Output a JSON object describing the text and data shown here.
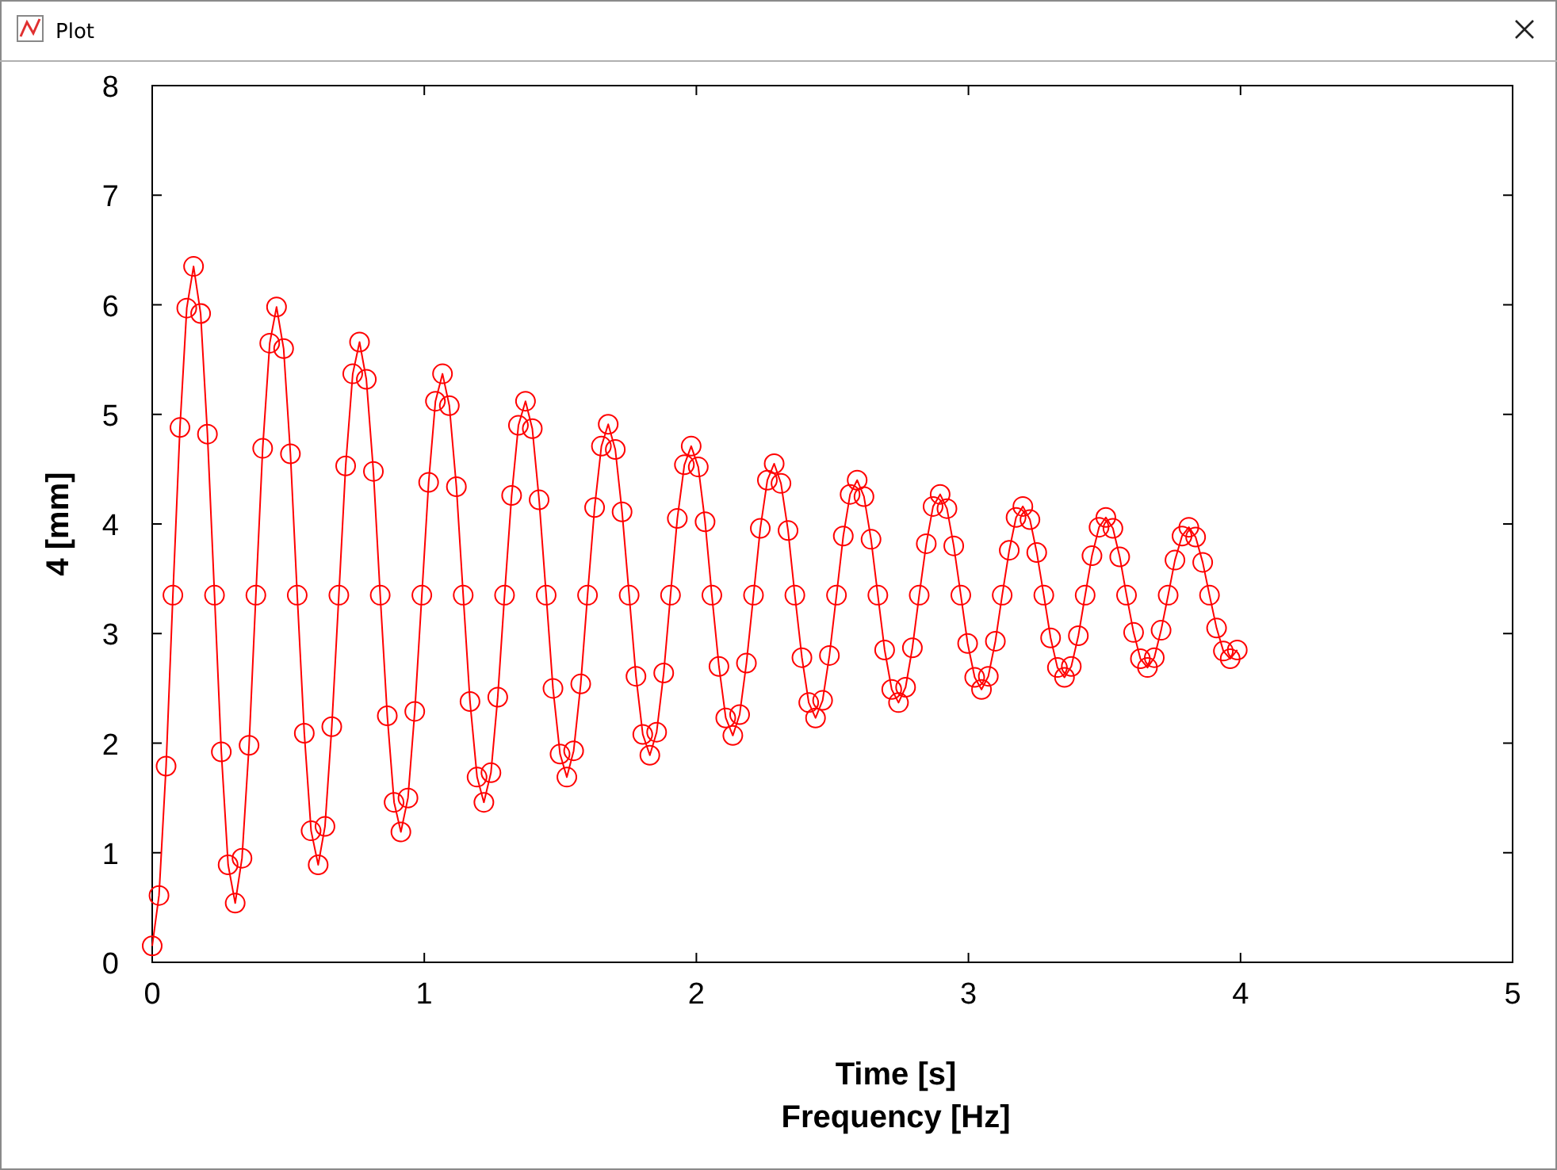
{
  "chart_data": {
    "type": "line",
    "title": "Plot",
    "xlabel": "Time [s]\nFrequency [Hz]",
    "ylabel": "4 [mm]",
    "xlim": [
      0,
      5
    ],
    "xticks": [
      0,
      1,
      2,
      3,
      4,
      5
    ],
    "ylim": [
      0,
      8
    ],
    "yticks": [
      0,
      1,
      2,
      3,
      4,
      5,
      6,
      7,
      8
    ],
    "grid": false,
    "marker": "circle",
    "line_style": "solid",
    "series": [
      {
        "color": "#ff0000",
        "x": [
          0,
          0.025,
          0.051,
          0.076,
          0.102,
          0.127,
          0.152,
          0.178,
          0.203,
          0.229,
          0.254,
          0.279,
          0.305,
          0.33,
          0.356,
          0.381,
          0.406,
          0.432,
          0.457,
          0.483,
          0.508,
          0.533,
          0.559,
          0.584,
          0.61,
          0.635,
          0.66,
          0.686,
          0.711,
          0.737,
          0.762,
          0.787,
          0.813,
          0.838,
          0.864,
          0.889,
          0.914,
          0.94,
          0.965,
          0.991,
          1.016,
          1.041,
          1.067,
          1.092,
          1.118,
          1.143,
          1.168,
          1.194,
          1.219,
          1.245,
          1.27,
          1.295,
          1.321,
          1.346,
          1.372,
          1.397,
          1.422,
          1.448,
          1.473,
          1.499,
          1.524,
          1.549,
          1.575,
          1.6,
          1.626,
          1.651,
          1.676,
          1.702,
          1.727,
          1.753,
          1.778,
          1.803,
          1.829,
          1.854,
          1.88,
          1.905,
          1.93,
          1.956,
          1.981,
          2.007,
          2.032,
          2.057,
          2.083,
          2.108,
          2.134,
          2.159,
          2.184,
          2.21,
          2.235,
          2.261,
          2.286,
          2.311,
          2.337,
          2.362,
          2.388,
          2.413,
          2.438,
          2.464,
          2.489,
          2.515,
          2.54,
          2.565,
          2.591,
          2.616,
          2.642,
          2.667,
          2.692,
          2.718,
          2.743,
          2.769,
          2.794,
          2.819,
          2.845,
          2.87,
          2.896,
          2.921,
          2.946,
          2.972,
          2.997,
          3.023,
          3.048,
          3.073,
          3.099,
          3.124,
          3.15,
          3.175,
          3.2,
          3.226,
          3.251,
          3.277,
          3.302,
          3.327,
          3.353,
          3.378,
          3.404,
          3.429,
          3.454,
          3.48,
          3.505,
          3.531,
          3.556,
          3.581,
          3.607,
          3.632,
          3.658,
          3.683,
          3.708,
          3.734,
          3.759,
          3.785,
          3.81,
          3.835,
          3.861,
          3.886,
          3.912,
          3.937,
          3.962,
          3.988
        ],
        "values": [
          0.15,
          0.61,
          1.79,
          3.35,
          4.88,
          5.97,
          6.35,
          5.92,
          4.82,
          3.35,
          1.92,
          0.89,
          0.54,
          0.95,
          1.98,
          3.35,
          4.69,
          5.65,
          5.98,
          5.6,
          4.64,
          3.35,
          2.09,
          1.2,
          0.89,
          1.24,
          2.15,
          3.35,
          4.53,
          5.37,
          5.66,
          5.32,
          4.48,
          3.35,
          2.25,
          1.46,
          1.19,
          1.5,
          2.29,
          3.35,
          4.38,
          5.12,
          5.37,
          5.08,
          4.34,
          3.35,
          2.38,
          1.69,
          1.46,
          1.73,
          2.42,
          3.35,
          4.26,
          4.9,
          5.12,
          4.87,
          4.22,
          3.35,
          2.5,
          1.9,
          1.69,
          1.93,
          2.54,
          3.35,
          4.15,
          4.71,
          4.91,
          4.68,
          4.11,
          3.35,
          2.61,
          2.08,
          1.89,
          2.1,
          2.64,
          3.35,
          4.05,
          4.54,
          4.71,
          4.52,
          4.02,
          3.35,
          2.7,
          2.23,
          2.07,
          2.26,
          2.73,
          3.35,
          3.96,
          4.4,
          4.55,
          4.37,
          3.94,
          3.35,
          2.78,
          2.37,
          2.23,
          2.39,
          2.8,
          3.35,
          3.89,
          4.27,
          4.4,
          4.25,
          3.86,
          3.35,
          2.85,
          2.49,
          2.37,
          2.51,
          2.87,
          3.35,
          3.82,
          4.16,
          4.27,
          4.14,
          3.8,
          3.35,
          2.91,
          2.6,
          2.49,
          2.61,
          2.93,
          3.35,
          3.76,
          4.06,
          4.16,
          4.04,
          3.74,
          3.35,
          2.96,
          2.69,
          2.6,
          2.7,
          2.98,
          3.35,
          3.71,
          3.97,
          4.06,
          3.96,
          3.7,
          3.35,
          3.01,
          2.77,
          2.69,
          2.78,
          3.03,
          3.35,
          3.67,
          3.89,
          3.97,
          3.88,
          3.65,
          3.35,
          3.05,
          2.84,
          2.77,
          2.85
        ]
      }
    ]
  }
}
